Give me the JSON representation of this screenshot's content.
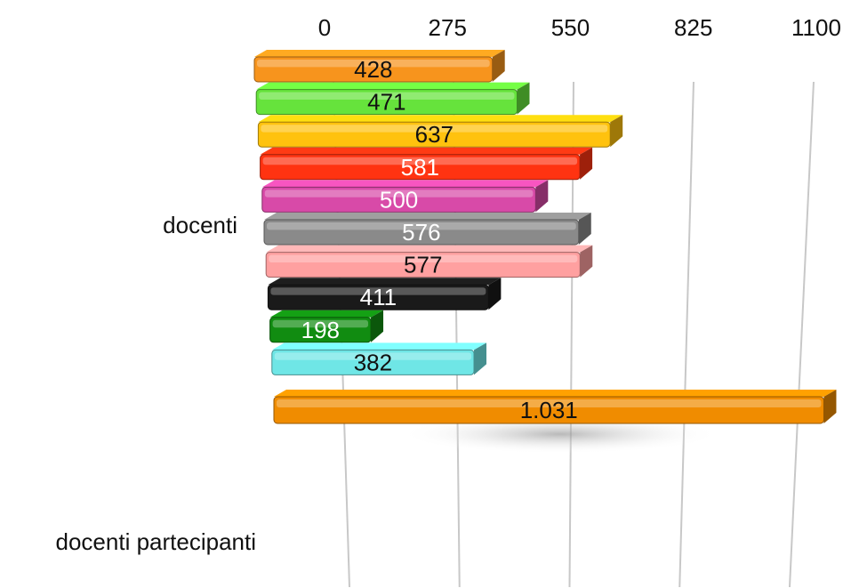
{
  "chart_data": {
    "type": "bar",
    "orientation": "horizontal",
    "categories": [
      "docenti",
      "docenti partecipanti"
    ],
    "xlim": [
      0,
      1100
    ],
    "x_ticks": [
      "0",
      "275",
      "550",
      "825",
      "1100"
    ],
    "grid": true,
    "axis_position": "top",
    "bars": [
      {
        "value": 428,
        "label": "428",
        "color": "#f7941d",
        "label_color": "#111111"
      },
      {
        "value": 471,
        "label": "471",
        "color": "#66e33c",
        "label_color": "#111111"
      },
      {
        "value": 637,
        "label": "637",
        "color": "#ffc20e",
        "label_color": "#111111"
      },
      {
        "value": 581,
        "label": "581",
        "color": "#ff3311",
        "label_color": "#ffffff"
      },
      {
        "value": 500,
        "label": "500",
        "color": "#d84aa8",
        "label_color": "#ffffff"
      },
      {
        "value": 576,
        "label": "576",
        "color": "#8a8a8a",
        "label_color": "#ffffff"
      },
      {
        "value": 577,
        "label": "577",
        "color": "#ffa0a0",
        "label_color": "#111111"
      },
      {
        "value": 411,
        "label": "411",
        "color": "#1a1a1a",
        "label_color": "#ffffff"
      },
      {
        "value": 198,
        "label": "198",
        "color": "#118c11",
        "label_color": "#ffffff"
      },
      {
        "value": 382,
        "label": "382",
        "color": "#6fe6e6",
        "label_color": "#111111"
      },
      {
        "value": 1031,
        "label": "1.031",
        "color": "#f08c00",
        "label_color": "#111111"
      }
    ]
  }
}
